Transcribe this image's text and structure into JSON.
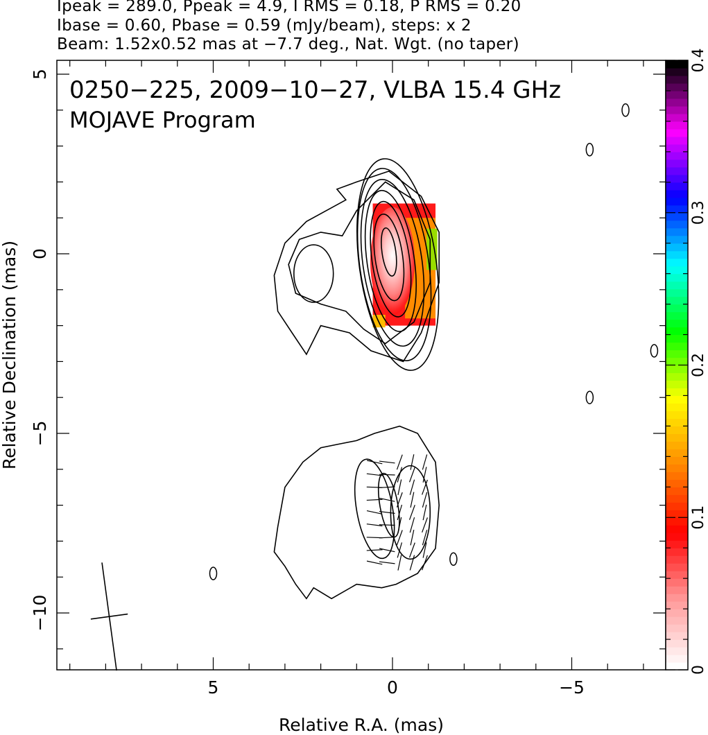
{
  "header": {
    "line1": "Ipeak = 289.0, Ppeak = 4.9, I RMS = 0.18, P RMS = 0.20",
    "line2": "Ibase = 0.60, Pbase = 0.59 (mJy/beam), steps: x 2",
    "line3": "Beam: 1.52x0.52 mas at −7.7 deg., Nat. Wgt. (no taper)"
  },
  "chart_data": {
    "type": "heatmap",
    "title_line1": "0250−225, 2009−10−27, VLBA 15.4 GHz",
    "title_line2": "MOJAVE Program",
    "xlabel": "Relative R.A. (mas)",
    "ylabel": "Relative Declination (mas)",
    "xlim": [
      9.4,
      -7.6
    ],
    "ylim": [
      -11.6,
      5.3
    ],
    "x_ticks": [
      5,
      0,
      -5
    ],
    "x_tick_labels": [
      "5",
      "0",
      "−5"
    ],
    "y_ticks": [
      5,
      0,
      -5,
      -10
    ],
    "y_tick_labels": [
      "5",
      "0",
      "−5",
      "−10"
    ],
    "colorbar": {
      "min": 0,
      "max": 0.4,
      "ticks": [
        0,
        0.1,
        0.2,
        0.3,
        0.4
      ],
      "tick_labels": [
        "0",
        "0.1",
        "0.2",
        "0.3",
        "0.4"
      ],
      "stops": [
        "#ffffff",
        "#ff9999",
        "#ff0000",
        "#ff8800",
        "#ffff00",
        "#00ff00",
        "#00ffff",
        "#0000ff",
        "#ff00ff",
        "#000000"
      ]
    },
    "beam": {
      "major_mas": 1.52,
      "minor_mas": 0.52,
      "pa_deg": -7.7,
      "center": [
        7.9,
        -10.1
      ]
    },
    "upper_component": {
      "center": [
        0.1,
        0.1
      ],
      "contours": [
        {
          "rx": 1.95,
          "ry": 3.3,
          "cx": -0.15,
          "cy": -0.3
        },
        {
          "rx": 1.75,
          "ry": 3.0,
          "cx": -0.05,
          "cy": -0.3
        },
        {
          "rx": 1.5,
          "ry": 2.6,
          "cx": 0.0,
          "cy": -0.25
        },
        {
          "rx": 1.2,
          "ry": 2.2,
          "cx": 0.05,
          "cy": -0.2
        },
        {
          "rx": 0.95,
          "ry": 1.8,
          "cx": 0.05,
          "cy": -0.15
        },
        {
          "rx": 0.7,
          "ry": 1.35,
          "cx": 0.1,
          "cy": -0.1
        },
        {
          "rx": 0.35,
          "ry": 0.75,
          "cx": 0.1,
          "cy": 0.05
        }
      ],
      "polarization_fraction_peak": 0.05,
      "polarization_fraction_edge": 0.17
    },
    "lower_component": {
      "center": [
        0.3,
        -7.0
      ],
      "evpa_vectors_deg": [
        -80,
        -75,
        -70,
        -65,
        -60,
        -75,
        10,
        15,
        -5,
        -10
      ]
    },
    "noise_islands": [
      [
        -5.5,
        2.9
      ],
      [
        -6.5,
        4.0
      ],
      [
        -7.3,
        -2.7
      ],
      [
        -5.5,
        -4.0
      ],
      [
        5.0,
        -8.9
      ],
      [
        -1.7,
        -8.5
      ]
    ]
  }
}
